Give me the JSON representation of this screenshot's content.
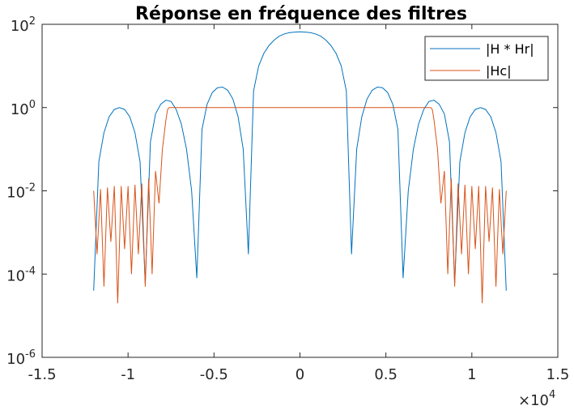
{
  "chart_data": {
    "type": "line",
    "title": "Réponse en fréquence des filtres",
    "xlabel": "",
    "ylabel": "",
    "xlim": [
      -15000,
      15000
    ],
    "ylim": [
      1e-06,
      100
    ],
    "yscale": "log",
    "grid": false,
    "legend_position": "top-right",
    "x_multiplier_label": "×10",
    "x_multiplier_exp": "4",
    "x_ticks": [
      {
        "value": -15000,
        "label": "-1.5"
      },
      {
        "value": -10000,
        "label": "-1"
      },
      {
        "value": -5000,
        "label": "-0.5"
      },
      {
        "value": 0,
        "label": "0"
      },
      {
        "value": 5000,
        "label": "0.5"
      },
      {
        "value": 10000,
        "label": "1"
      },
      {
        "value": 15000,
        "label": "1.5"
      }
    ],
    "y_ticks": [
      {
        "value": 1e-06,
        "base": "10",
        "exp": "-6"
      },
      {
        "value": 0.0001,
        "base": "10",
        "exp": "-4"
      },
      {
        "value": 0.01,
        "base": "10",
        "exp": "-2"
      },
      {
        "value": 1,
        "base": "10",
        "exp": "0"
      },
      {
        "value": 100,
        "base": "10",
        "exp": "2"
      }
    ],
    "series": [
      {
        "name": "|H * Hr|",
        "color": "#0072bd",
        "x": [
          -12000,
          -11700,
          -11400,
          -11100,
          -10800,
          -10500,
          -10200,
          -9900,
          -9600,
          -9300,
          -9000,
          -8700,
          -8400,
          -8100,
          -7800,
          -7500,
          -7200,
          -6900,
          -6600,
          -6300,
          -6000,
          -5700,
          -5400,
          -5100,
          -4800,
          -4500,
          -4200,
          -3900,
          -3600,
          -3300,
          -3000,
          -2700,
          -2400,
          -2100,
          -1800,
          -1500,
          -1200,
          -900,
          -600,
          -300,
          0,
          300,
          600,
          900,
          1200,
          1500,
          1800,
          2100,
          2400,
          2700,
          3000,
          3300,
          3600,
          3900,
          4200,
          4500,
          4800,
          5100,
          5400,
          5700,
          6000,
          6300,
          6600,
          6900,
          7200,
          7500,
          7800,
          8100,
          8400,
          8700,
          9000,
          9300,
          9600,
          9900,
          10200,
          10500,
          10800,
          11100,
          11400,
          11700,
          12000
        ],
        "values": [
          4e-05,
          0.05,
          0.25,
          0.6,
          0.9,
          1.0,
          0.9,
          0.6,
          0.25,
          0.05,
          6e-05,
          0.15,
          0.7,
          1.2,
          1.5,
          1.4,
          0.9,
          0.4,
          0.1,
          0.01,
          8e-05,
          0.3,
          1.2,
          2.3,
          3.0,
          3.1,
          2.6,
          1.6,
          0.6,
          0.1,
          0.0003,
          2.5,
          10,
          20,
          31,
          42,
          52,
          59,
          63,
          65,
          66,
          65,
          63,
          59,
          52,
          42,
          31,
          20,
          10,
          2.5,
          0.0003,
          0.1,
          0.6,
          1.6,
          2.6,
          3.1,
          3.0,
          2.3,
          1.2,
          0.3,
          8e-05,
          0.01,
          0.1,
          0.4,
          0.9,
          1.4,
          1.5,
          1.2,
          0.7,
          0.15,
          6e-05,
          0.05,
          0.25,
          0.6,
          0.9,
          1.0,
          0.9,
          0.6,
          0.25,
          0.05,
          4e-05
        ]
      },
      {
        "name": "|Hc|",
        "color": "#d95319",
        "x": [
          -12000,
          -11800,
          -11600,
          -11400,
          -11200,
          -11000,
          -10800,
          -10600,
          -10400,
          -10200,
          -10000,
          -9800,
          -9600,
          -9400,
          -9200,
          -9000,
          -8800,
          -8600,
          -8400,
          -8200,
          -8000,
          -7800,
          -7700,
          -7600,
          -7400,
          -7000,
          -6000,
          -5000,
          -4000,
          -3000,
          -2000,
          -1000,
          0,
          1000,
          2000,
          3000,
          4000,
          5000,
          6000,
          7000,
          7400,
          7600,
          7700,
          7800,
          8000,
          8200,
          8400,
          8600,
          8800,
          9000,
          9200,
          9400,
          9600,
          9800,
          10000,
          10200,
          10400,
          10600,
          10800,
          11000,
          11200,
          11400,
          11600,
          11800,
          12000
        ],
        "values": [
          0.01,
          0.0003,
          0.011,
          5e-05,
          0.012,
          0.0006,
          0.013,
          2e-05,
          0.013,
          0.0004,
          0.013,
          0.0001,
          0.014,
          0.0003,
          0.015,
          5e-05,
          0.02,
          0.0001,
          0.03,
          0.005,
          0.1,
          0.5,
          0.9,
          1.0,
          1.0,
          1.0,
          1.0,
          1.0,
          1.0,
          1.0,
          1.0,
          1.0,
          1.0,
          1.0,
          1.0,
          1.0,
          1.0,
          1.0,
          1.0,
          1.0,
          1.0,
          1.0,
          0.9,
          0.5,
          0.1,
          0.005,
          0.03,
          0.0001,
          0.02,
          5e-05,
          0.015,
          0.0003,
          0.014,
          0.0001,
          0.013,
          0.0004,
          0.013,
          2e-05,
          0.013,
          0.0006,
          0.012,
          5e-05,
          0.011,
          0.0003,
          0.01
        ]
      }
    ]
  }
}
